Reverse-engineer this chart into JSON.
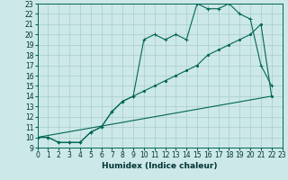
{
  "xlabel": "Humidex (Indice chaleur)",
  "background_color": "#cce8e8",
  "grid_color": "#aacccc",
  "line_color": "#006655",
  "xlim": [
    0,
    23
  ],
  "ylim": [
    9,
    23
  ],
  "x_ticks": [
    0,
    1,
    2,
    3,
    4,
    5,
    6,
    7,
    8,
    9,
    10,
    11,
    12,
    13,
    14,
    15,
    16,
    17,
    18,
    19,
    20,
    21,
    22,
    23
  ],
  "y_ticks": [
    9,
    10,
    11,
    12,
    13,
    14,
    15,
    16,
    17,
    18,
    19,
    20,
    21,
    22,
    23
  ],
  "line1_x": [
    0,
    1,
    2,
    3,
    4,
    5,
    6,
    7,
    8,
    9,
    10,
    11,
    12,
    13,
    14,
    15,
    16,
    17,
    18,
    19,
    20,
    21,
    22
  ],
  "line1_y": [
    10,
    10,
    9.5,
    9.5,
    9.5,
    10.5,
    11,
    12.5,
    13.5,
    14,
    19.5,
    20,
    19.5,
    20,
    19.5,
    23,
    22.5,
    22.5,
    23,
    22,
    21.5,
    17,
    15
  ],
  "line2_x": [
    0,
    22
  ],
  "line2_y": [
    10,
    14
  ],
  "line3_x": [
    0,
    1,
    2,
    3,
    4,
    5,
    6,
    7,
    8,
    9,
    10,
    11,
    12,
    13,
    14,
    15,
    16,
    17,
    18,
    19,
    20,
    21,
    22
  ],
  "line3_y": [
    10,
    10,
    9.5,
    9.5,
    9.5,
    10.5,
    11,
    12.5,
    13.5,
    14,
    14.5,
    15,
    15.5,
    16,
    16.5,
    17,
    18,
    18.5,
    19,
    19.5,
    20,
    21,
    14
  ],
  "tick_fontsize": 5.5,
  "xlabel_fontsize": 6.5,
  "linewidth": 0.8,
  "marker_size": 2.5
}
